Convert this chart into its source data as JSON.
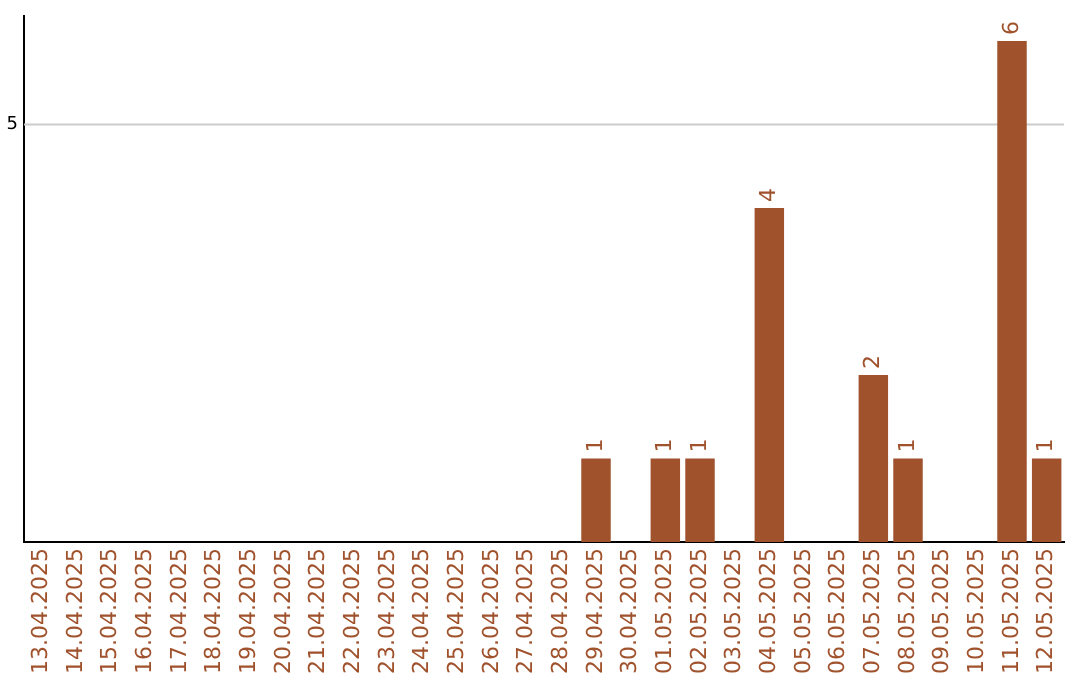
{
  "chart_data": {
    "type": "bar",
    "categories": [
      "13.04.2025",
      "14.04.2025",
      "15.04.2025",
      "16.04.2025",
      "17.04.2025",
      "18.04.2025",
      "19.04.2025",
      "20.04.2025",
      "21.04.2025",
      "22.04.2025",
      "23.04.2025",
      "24.04.2025",
      "25.04.2025",
      "26.04.2025",
      "27.04.2025",
      "28.04.2025",
      "29.04.2025",
      "30.04.2025",
      "01.05.2025",
      "02.05.2025",
      "03.05.2025",
      "04.05.2025",
      "05.05.2025",
      "06.05.2025",
      "07.05.2025",
      "08.05.2025",
      "09.05.2025",
      "10.05.2025",
      "11.05.2025",
      "12.05.2025"
    ],
    "values": [
      null,
      null,
      null,
      null,
      null,
      null,
      null,
      null,
      null,
      null,
      null,
      null,
      null,
      null,
      null,
      null,
      1,
      null,
      1,
      1,
      null,
      4,
      null,
      null,
      2,
      1,
      null,
      null,
      6,
      1
    ],
    "data_labels": true,
    "color": "#a0522d",
    "ylim": [
      0,
      6.3
    ],
    "ref_lines": [
      {
        "axis": "y",
        "value": 5,
        "label": "5",
        "color": "#cccccc"
      }
    ],
    "legend": false
  }
}
